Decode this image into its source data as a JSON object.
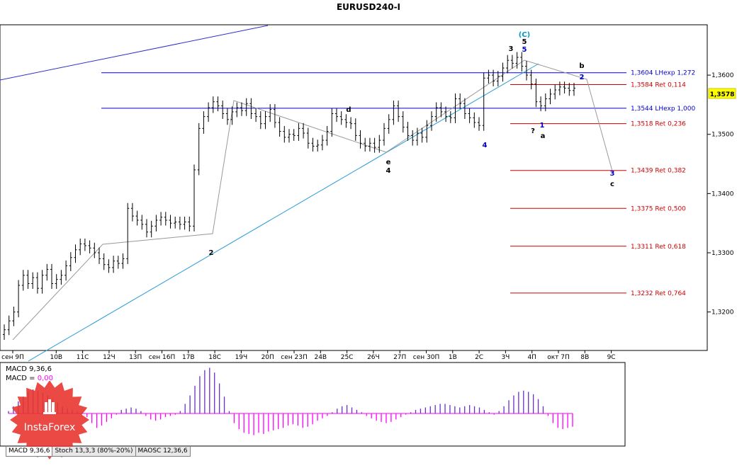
{
  "window": {
    "title": "EURUSD240-I",
    "price_badge": "1,3578"
  },
  "chart_data": {
    "type": "candlestick",
    "title": "EURUSD240-I",
    "symbol": "EURUSD",
    "timeframe": "240",
    "price_axis": {
      "range": [
        1.3135,
        1.3685
      ],
      "ticks": [
        1.32,
        1.33,
        1.34,
        1.35,
        1.36
      ],
      "tick_labels": [
        "1,3200",
        "1,3300",
        "1,3400",
        "1,3500",
        "1,3600"
      ],
      "current_price": 1.3578,
      "current_price_label": "1,3578"
    },
    "time_axis_labels": [
      "сен 9П",
      "10В",
      "11С",
      "12Ч",
      "13П",
      "сен 16П",
      "17В",
      "18С",
      "19Ч",
      "20П",
      "сен 23П",
      "24В",
      "25С",
      "26Ч",
      "27П",
      "сен 30П",
      "1В",
      "2С",
      "3Ч",
      "4П",
      "окт 7П",
      "8В",
      "9С"
    ],
    "levels": [
      {
        "price": 1.3604,
        "label": "1,3604 LHexp 1,272",
        "color": "#0000cc"
      },
      {
        "price": 1.3584,
        "label": "1,3584 Ret 0,114",
        "color": "#cc0000"
      },
      {
        "price": 1.3544,
        "label": "1,3544 LHexp 1,000",
        "color": "#0000cc"
      },
      {
        "price": 1.3518,
        "label": "1,3518 Ret 0,236",
        "color": "#cc0000"
      },
      {
        "price": 1.3439,
        "label": "1,3439 Ret 0,382",
        "color": "#cc0000"
      },
      {
        "price": 1.3375,
        "label": "1,3375 Ret 0,500",
        "color": "#cc0000"
      },
      {
        "price": 1.3311,
        "label": "1,3311 Ret 0,618",
        "color": "#cc0000"
      },
      {
        "price": 1.3232,
        "label": "1,3232 Ret 0,764",
        "color": "#cc0000"
      }
    ],
    "candles_close": [
      1.317,
      1.3185,
      1.32,
      1.3245,
      1.3262,
      1.3248,
      1.3258,
      1.324,
      1.3262,
      1.3272,
      1.3248,
      1.3255,
      1.3262,
      1.3278,
      1.3292,
      1.3305,
      1.3315,
      1.3312,
      1.3308,
      1.33,
      1.329,
      1.328,
      1.3275,
      1.3286,
      1.3282,
      1.329,
      1.3375,
      1.3362,
      1.3355,
      1.3348,
      1.3335,
      1.3345,
      1.3355,
      1.336,
      1.3355,
      1.335,
      1.3352,
      1.3348,
      1.3352,
      1.3345,
      1.344,
      1.351,
      1.353,
      1.3545,
      1.3555,
      1.3548,
      1.3535,
      1.3525,
      1.3538,
      1.3545,
      1.354,
      1.3552,
      1.3535,
      1.353,
      1.3518,
      1.353,
      1.3542,
      1.352,
      1.3505,
      1.3495,
      1.35,
      1.3498,
      1.351,
      1.3502,
      1.3485,
      1.348,
      1.3482,
      1.349,
      1.3505,
      1.3535,
      1.353,
      1.3525,
      1.352,
      1.3518,
      1.3498,
      1.3485,
      1.348,
      1.3485,
      1.3478,
      1.349,
      1.351,
      1.3525,
      1.3548,
      1.353,
      1.3512,
      1.3498,
      1.349,
      1.3502,
      1.3495,
      1.3515,
      1.353,
      1.3545,
      1.3538,
      1.353,
      1.3528,
      1.356,
      1.3552,
      1.3535,
      1.3528,
      1.352,
      1.3515,
      1.3595,
      1.36,
      1.359,
      1.3598,
      1.3612,
      1.3625,
      1.362,
      1.363,
      1.3615,
      1.36,
      1.3585,
      1.3555,
      1.3548,
      1.356,
      1.3568,
      1.3575,
      1.358,
      1.3578,
      1.3574,
      1.3578
    ],
    "annotations": [
      {
        "text": "(C)",
        "color": "#0099cc"
      },
      {
        "text": "5",
        "color": "#000000"
      },
      {
        "text": "5",
        "color": "#0000cc"
      },
      {
        "text": "3",
        "color": "#000000"
      },
      {
        "text": "b",
        "color": "#000000"
      },
      {
        "text": "2",
        "color": "#0000cc"
      },
      {
        "text": "1",
        "color": "#0000cc"
      },
      {
        "text": "a",
        "color": "#000000"
      },
      {
        "text": "?",
        "color": "#000000"
      },
      {
        "text": "4",
        "color": "#0000cc"
      },
      {
        "text": "3",
        "color": "#0000cc"
      },
      {
        "text": "c",
        "color": "#000000"
      },
      {
        "text": "e",
        "color": "#000000"
      },
      {
        "text": "d",
        "color": "#000000"
      },
      {
        "text": "2",
        "color": "#000000"
      },
      {
        "text": "4",
        "color": "#000000"
      }
    ],
    "indicator_panel": {
      "title": "MACD 9,36,6",
      "line2_label": "MACD = ",
      "line2_value": "0,00",
      "histogram": [
        0.2,
        0.6,
        1.0,
        1.4,
        1.8,
        2.0,
        1.9,
        1.7,
        1.5,
        1.2,
        0.9,
        0.6,
        0.4,
        0.3,
        0.2,
        0.1,
        -0.3,
        -0.8,
        -1.2,
        -1.0,
        -0.7,
        -0.4,
        -0.1,
        0.3,
        0.4,
        0.5,
        0.4,
        0.2,
        -0.2,
        -0.5,
        -0.6,
        -0.5,
        -0.3,
        -0.2,
        -0.1,
        0.2,
        0.8,
        1.5,
        2.3,
        3.1,
        3.6,
        3.8,
        3.4,
        2.5,
        1.4,
        0.2,
        -0.8,
        -1.3,
        -1.6,
        -1.7,
        -1.8,
        -1.6,
        -1.7,
        -1.5,
        -1.4,
        -1.3,
        -1.2,
        -1.0,
        -0.9,
        -1.0,
        -1.2,
        -1.1,
        -0.9,
        -0.6,
        -0.4,
        -0.2,
        0.1,
        0.4,
        0.6,
        0.7,
        0.5,
        0.3,
        0.1,
        -0.2,
        -0.4,
        -0.6,
        -0.7,
        -0.8,
        -0.7,
        -0.5,
        -0.3,
        -0.1,
        0.1,
        0.3,
        0.4,
        0.5,
        0.6,
        0.7,
        0.8,
        0.8,
        0.7,
        0.6,
        0.5,
        0.6,
        0.7,
        0.6,
        0.5,
        0.3,
        0.1,
        -0.1,
        0.2,
        0.6,
        1.1,
        1.5,
        1.8,
        1.9,
        1.8,
        1.6,
        1.2,
        0.6,
        -0.2,
        -0.8,
        -1.2,
        -1.3,
        -1.2,
        -1.1
      ]
    }
  },
  "tabs": [
    {
      "label": "MACD 9,36,6"
    },
    {
      "label": "Stoch 13,3,3 (80%-20%)"
    },
    {
      "label": "MAOSC 12,36,6"
    }
  ],
  "brand": {
    "name": "InstaForex"
  }
}
